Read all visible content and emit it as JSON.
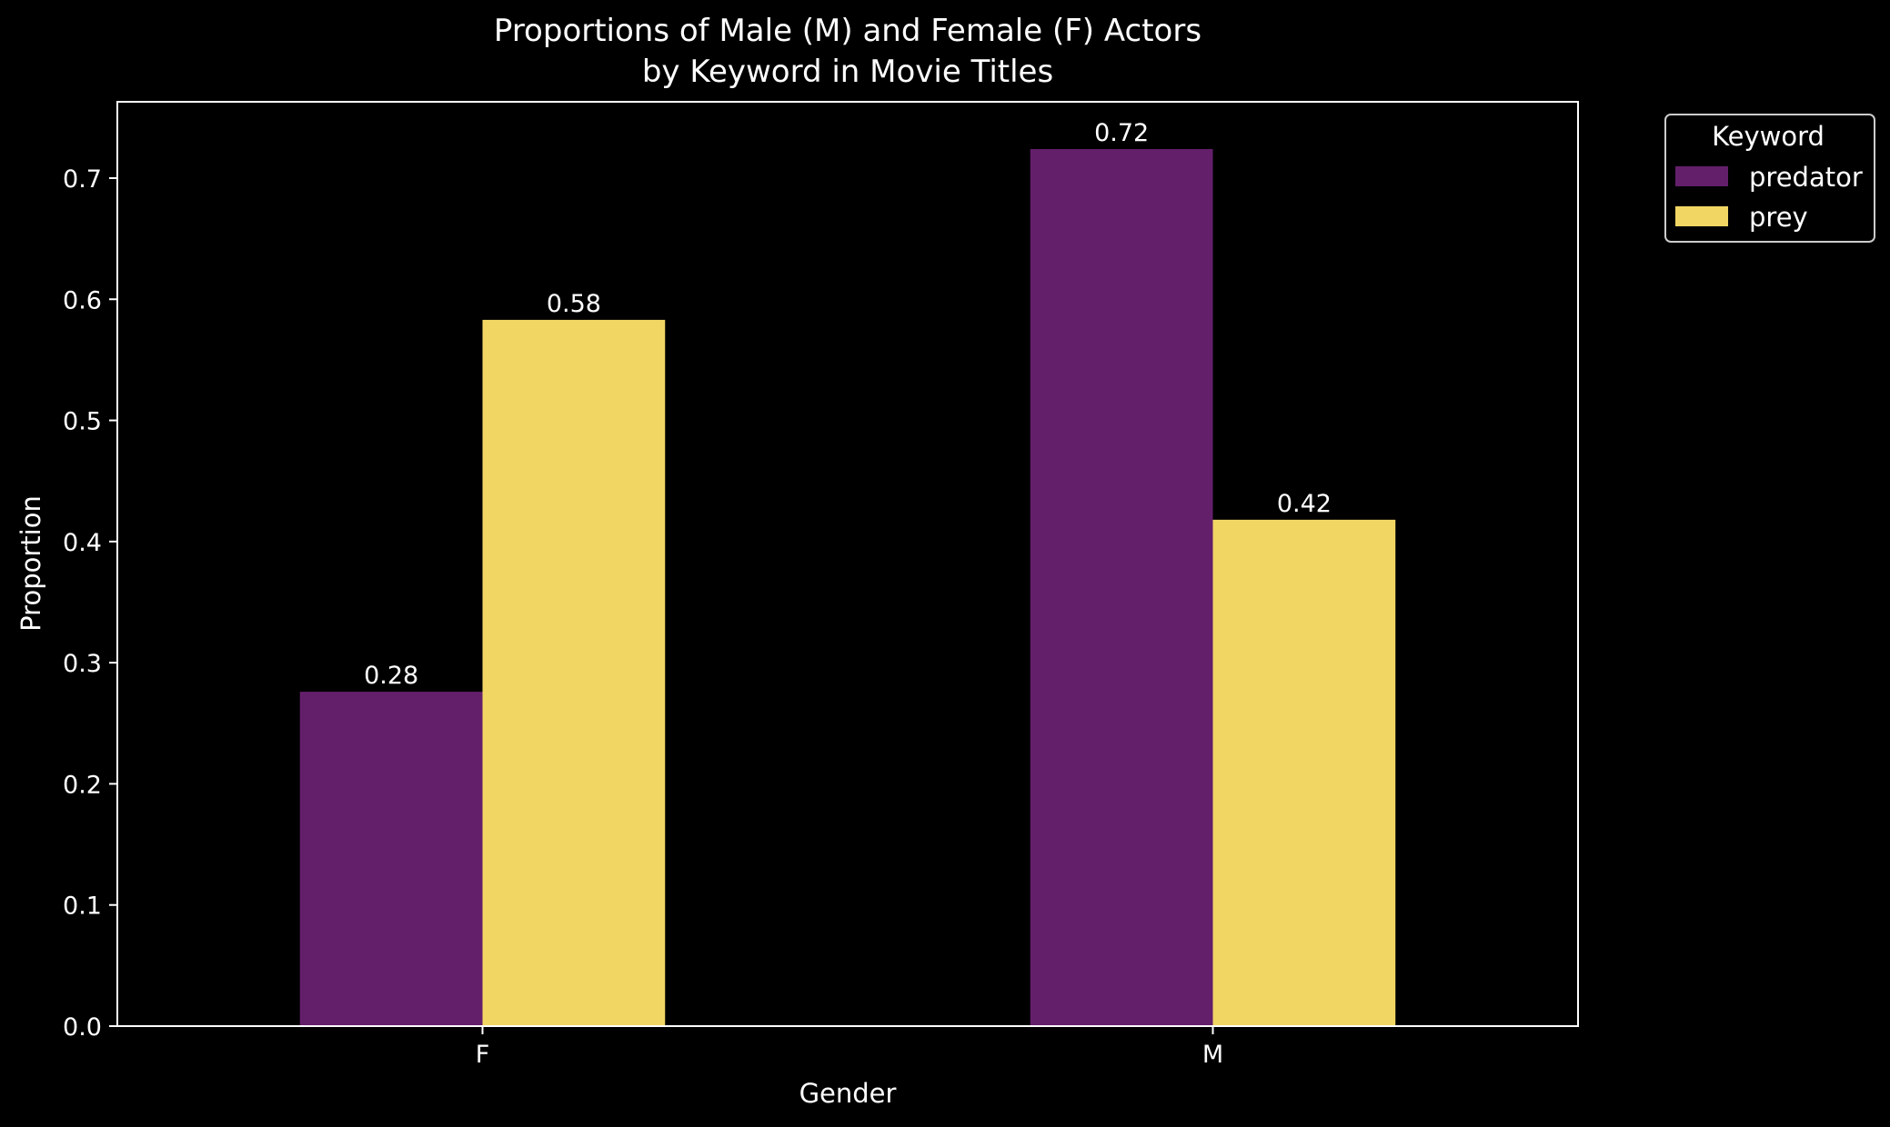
{
  "chart_data": {
    "type": "bar",
    "title_line1": "Proportions of Male (M) and Female (F) Actors",
    "title_line2": "by Keyword in Movie Titles",
    "xlabel": "Gender",
    "ylabel": "Proportion",
    "categories": [
      "F",
      "M"
    ],
    "series": [
      {
        "name": "predator",
        "color": "#641F6B",
        "values": [
          0.276,
          0.724
        ],
        "labels": [
          "0.28",
          "0.72"
        ]
      },
      {
        "name": "prey",
        "color": "#F1D664",
        "values": [
          0.583,
          0.418
        ],
        "labels": [
          "0.58",
          "0.42"
        ]
      }
    ],
    "ylim": [
      0,
      0.763
    ],
    "yticks": [
      0.0,
      0.1,
      0.2,
      0.3,
      0.4,
      0.5,
      0.6,
      0.7
    ],
    "ytick_labels": [
      "0.0",
      "0.1",
      "0.2",
      "0.3",
      "0.4",
      "0.5",
      "0.6",
      "0.7"
    ],
    "legend_title": "Keyword",
    "legend_position": "outside-top-right",
    "grid": false,
    "background": "#000000",
    "foreground": "#ffffff"
  }
}
